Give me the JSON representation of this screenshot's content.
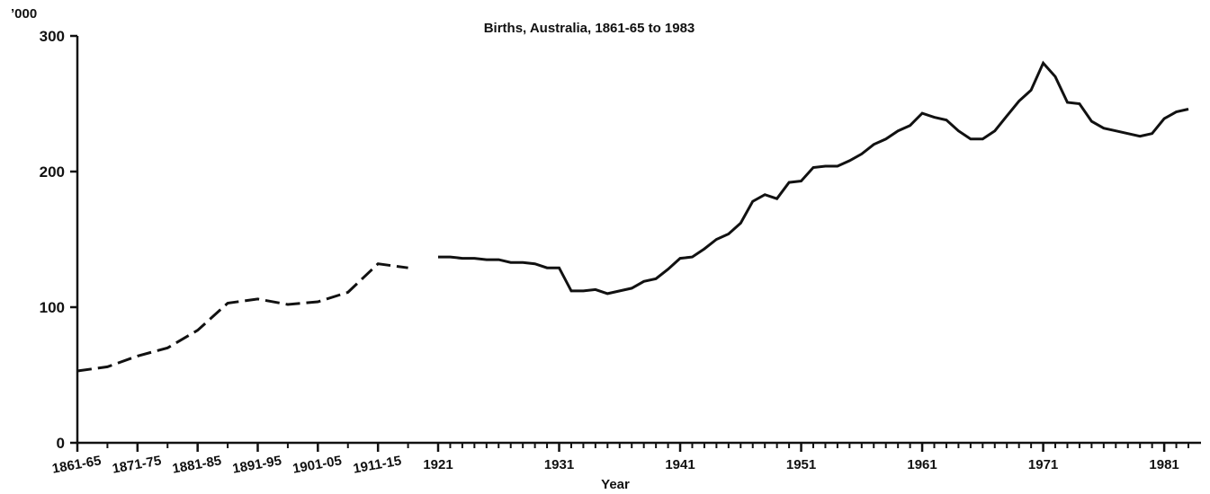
{
  "chart_data": {
    "type": "line",
    "title": "Births, Australia, 1861-65 to 1983",
    "y_unit": "’000",
    "x_label": "Year",
    "xlim": [
      1861,
      1983
    ],
    "xticks": [
      {
        "value": 1861,
        "label": "1861-65"
      },
      {
        "value": 1871,
        "label": "1871-75"
      },
      {
        "value": 1881,
        "label": "1881-85"
      },
      {
        "value": 1891,
        "label": "1891-95"
      },
      {
        "value": 1901,
        "label": "1901-05"
      },
      {
        "value": 1911,
        "label": "1911-15"
      },
      1921,
      1931,
      1941,
      1951,
      1961,
      1971,
      1981
    ],
    "ylim": [
      0,
      300
    ],
    "yticks": [
      0,
      100,
      200,
      300
    ],
    "series": [
      {
        "color": "#111111",
        "style": "dashed",
        "x": [
          1861,
          1866,
          1871,
          1876,
          1881,
          1886,
          1891,
          1896,
          1901,
          1906,
          1911,
          1916
        ],
        "values": [
          53,
          56,
          64,
          70,
          83,
          103,
          106,
          102,
          104,
          111,
          132,
          129
        ]
      },
      {
        "color": "#111111",
        "style": "solid",
        "x": [
          1921,
          1922,
          1923,
          1924,
          1925,
          1926,
          1927,
          1928,
          1929,
          1930,
          1931,
          1932,
          1933,
          1934,
          1935,
          1936,
          1937,
          1938,
          1939,
          1940,
          1941,
          1942,
          1943,
          1944,
          1945,
          1946,
          1947,
          1948,
          1949,
          1950,
          1951,
          1952,
          1953,
          1954,
          1955,
          1956,
          1957,
          1958,
          1959,
          1960,
          1961,
          1962,
          1963,
          1964,
          1965,
          1966,
          1967,
          1968,
          1969,
          1970,
          1971,
          1972,
          1973,
          1974,
          1975,
          1976,
          1977,
          1978,
          1979,
          1980,
          1981,
          1982,
          1983
        ],
        "values": [
          137,
          137,
          136,
          136,
          135,
          135,
          133,
          133,
          132,
          129,
          129,
          112,
          112,
          113,
          110,
          112,
          114,
          119,
          121,
          128,
          136,
          137,
          143,
          150,
          154,
          162,
          178,
          183,
          180,
          192,
          193,
          203,
          204,
          204,
          208,
          213,
          220,
          224,
          230,
          234,
          243,
          240,
          238,
          230,
          224,
          224,
          230,
          241,
          252,
          260,
          280,
          270,
          251,
          250,
          237,
          232,
          230,
          228,
          226,
          228,
          239,
          244,
          246
        ]
      }
    ]
  }
}
